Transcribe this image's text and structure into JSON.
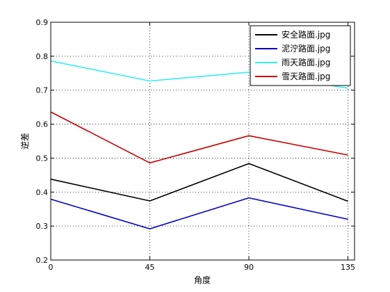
{
  "chart_data": {
    "type": "line",
    "title": "",
    "xlabel": "角度",
    "ylabel": "逆差",
    "x": [
      0,
      45,
      90,
      135
    ],
    "xticks": [
      0,
      45,
      90,
      135
    ],
    "yticks": [
      0.2,
      0.3,
      0.4,
      0.5,
      0.6,
      0.7,
      0.8,
      0.9
    ],
    "ytick_labels": [
      "0.2",
      "0.3",
      "0.4",
      "0.5",
      "0.6",
      "0.7",
      "0.8",
      "0.9"
    ],
    "xlim": [
      0,
      138
    ],
    "ylim": [
      0.2,
      0.9
    ],
    "grid": true,
    "legend_position": "top-right",
    "series": [
      {
        "name": "安全路面.jpg",
        "color": "#000000",
        "values": [
          0.438,
          0.374,
          0.484,
          0.373
        ]
      },
      {
        "name": "泥泞路面.jpg",
        "color": "#0000cc",
        "values": [
          0.379,
          0.292,
          0.383,
          0.32
        ]
      },
      {
        "name": "雨天路面.jpg",
        "color": "#33ecf2",
        "values": [
          0.786,
          0.727,
          0.753,
          0.706
        ]
      },
      {
        "name": "雪天路面.jpg",
        "color": "#cc0000",
        "values": [
          0.636,
          0.486,
          0.566,
          0.509
        ]
      }
    ]
  }
}
